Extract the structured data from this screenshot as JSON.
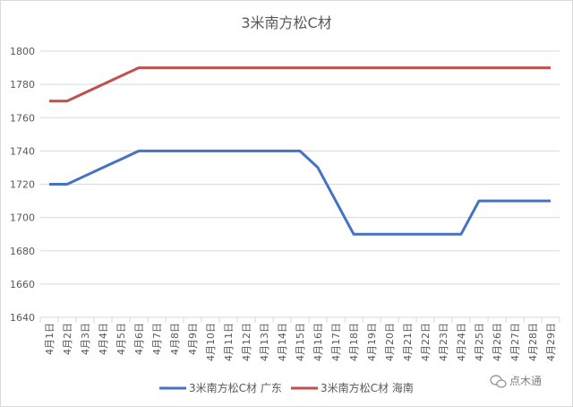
{
  "watermark": "点木通",
  "colors": {
    "series_1": "#4472c4",
    "series_2": "#c0504d",
    "grid": "#d9d9d9",
    "text": "#595959"
  },
  "chart_data": {
    "type": "line",
    "title": "3米南方松C材",
    "xlabel": "",
    "ylabel": "",
    "ylim": [
      1640,
      1800
    ],
    "yticks": [
      1640,
      1660,
      1680,
      1700,
      1720,
      1740,
      1760,
      1780,
      1800
    ],
    "grid": true,
    "legend": "bottom",
    "categories": [
      "4月1日",
      "4月2日",
      "4月3日",
      "4月4日",
      "4月5日",
      "4月6日",
      "4月7日",
      "4月8日",
      "4月9日",
      "4月10日",
      "4月11日",
      "4月12日",
      "4月13日",
      "4月14日",
      "4月15日",
      "4月16日",
      "4月17日",
      "4月18日",
      "4月19日",
      "4月20日",
      "4月21日",
      "4月22日",
      "4月23日",
      "4月24日",
      "4月25日",
      "4月26日",
      "4月27日",
      "4月28日",
      "4月29日"
    ],
    "series": [
      {
        "name": "3米南方松C材 广东",
        "color": "#4472c4",
        "values": [
          1720,
          1720,
          1725,
          1730,
          1735,
          1740,
          1740,
          1740,
          1740,
          1740,
          1740,
          1740,
          1740,
          1740,
          1740,
          1730,
          1710,
          1690,
          1690,
          1690,
          1690,
          1690,
          1690,
          1690,
          1710,
          1710,
          1710,
          1710,
          1710
        ]
      },
      {
        "name": "3米南方松C材 海南",
        "color": "#c0504d",
        "values": [
          1770,
          1770,
          1775,
          1780,
          1785,
          1790,
          1790,
          1790,
          1790,
          1790,
          1790,
          1790,
          1790,
          1790,
          1790,
          1790,
          1790,
          1790,
          1790,
          1790,
          1790,
          1790,
          1790,
          1790,
          1790,
          1790,
          1790,
          1790,
          1790
        ]
      }
    ]
  }
}
